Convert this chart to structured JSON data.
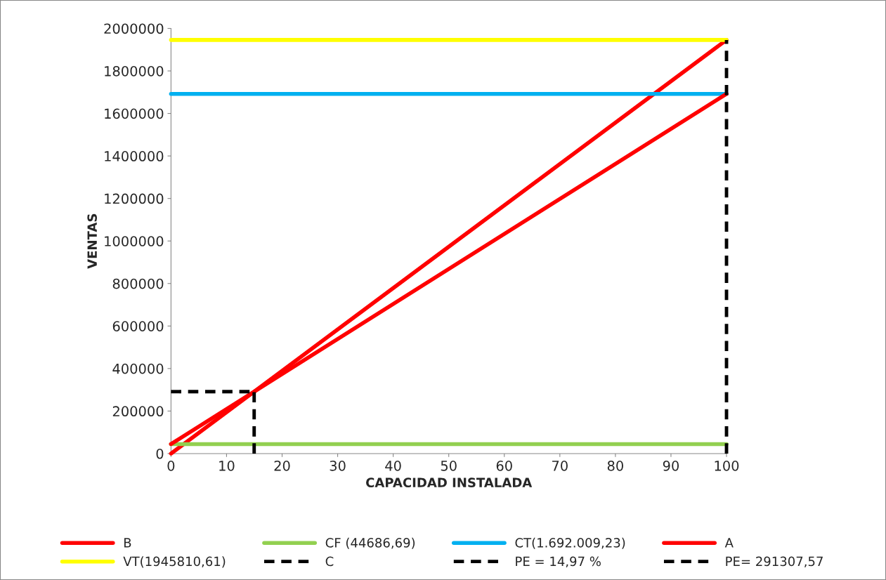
{
  "chart_data": {
    "type": "line",
    "xlabel": "CAPACIDAD INSTALADA",
    "ylabel": "VENTAS",
    "xlim": [
      0,
      100
    ],
    "xticks": [
      0,
      10,
      20,
      30,
      40,
      50,
      60,
      70,
      80,
      90,
      100
    ],
    "ylim": [
      0,
      2000000
    ],
    "yticks": [
      0,
      200000,
      400000,
      600000,
      800000,
      1000000,
      1200000,
      1400000,
      1600000,
      1800000,
      2000000
    ],
    "grid": false,
    "legend": "bottom",
    "marker": "none",
    "series": [
      {
        "name": "B",
        "color": "#ff0000",
        "x": [
          0,
          100
        ],
        "values": [
          0,
          1945810.61
        ],
        "line_style": "solid"
      },
      {
        "name": "CF (44686,69)",
        "color": "#92d050",
        "x": [
          0,
          100
        ],
        "values": [
          44686.69,
          44686.69
        ],
        "line_style": "solid"
      },
      {
        "name": "CT(1.692.009,23)",
        "color": "#00b0f0",
        "x": [
          0,
          100
        ],
        "values": [
          1692009.23,
          1692009.23
        ],
        "line_style": "solid"
      },
      {
        "name": "A",
        "color": "#ff0000",
        "x": [
          0,
          100
        ],
        "values": [
          44686.69,
          1692009.23
        ],
        "line_style": "solid"
      },
      {
        "name": "VT(1945810,61)",
        "color": "#ffff00",
        "x": [
          0,
          100
        ],
        "values": [
          1945810.61,
          1945810.61
        ],
        "line_style": "solid"
      },
      {
        "name": "C",
        "color": "#000000",
        "x": [
          100,
          100
        ],
        "values": [
          0,
          1945810.61
        ],
        "line_style": "dashed"
      },
      {
        "name": "PE = 14,97 %",
        "color": "#000000",
        "x": [
          14.97,
          14.97
        ],
        "values": [
          0,
          291307.57
        ],
        "line_style": "dashed"
      },
      {
        "name": "PE= 291307,57",
        "color": "#000000",
        "x": [
          0,
          14.97
        ],
        "values": [
          291307.57,
          291307.57
        ],
        "line_style": "dashed"
      }
    ]
  }
}
